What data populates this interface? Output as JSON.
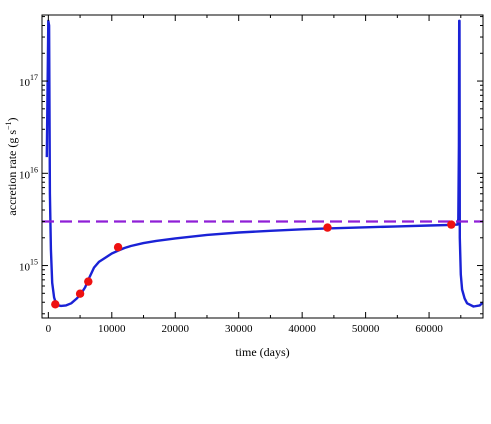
{
  "chart_data": {
    "type": "line",
    "title": "",
    "xlabel": "time (days)",
    "ylabel": "accretion rate (g s",
    "ylabel_sup": "−1",
    "ylabel_close": ")",
    "xlim": [
      -1000,
      68500
    ],
    "ylim": [
      270000000000000.0,
      5.2e+17
    ],
    "yscale": "log",
    "grid": false,
    "x_ticks": [
      0,
      10000,
      20000,
      30000,
      40000,
      50000,
      60000
    ],
    "y_ticks": [
      {
        "value": 1000000000000000.0,
        "base": "10",
        "exp": "15"
      },
      {
        "value": 1e+16,
        "base": "10",
        "exp": "16"
      },
      {
        "value": 1e+17,
        "base": "10",
        "exp": "17"
      }
    ],
    "series": [
      {
        "color": "#1a22d6",
        "style": "solid",
        "x": [
          -250,
          0,
          120,
          250,
          400,
          600,
          900,
          1200,
          1600,
          2000,
          2800,
          3600,
          4500,
          5200,
          5800,
          6300,
          6800,
          7200,
          8000,
          9000,
          10000,
          11000,
          12000,
          13000,
          15000,
          17000,
          20000,
          25000,
          30000,
          35000,
          40000,
          44000,
          50000,
          55000,
          60000,
          63500,
          64500,
          64600,
          64700,
          64750,
          64800,
          64850,
          65000,
          65200,
          65600,
          66000,
          67000,
          68000,
          68500
        ],
        "y": [
          1.5e+16,
          4.5e+17,
          4e+17,
          6000000000000000.0,
          1500000000000000.0,
          650000000000000.0,
          450000000000000.0,
          390000000000000.0,
          370000000000000.0,
          365000000000000.0,
          370000000000000.0,
          390000000000000.0,
          440000000000000.0,
          500000000000000.0,
          580000000000000.0,
          700000000000000.0,
          830000000000000.0,
          950000000000000.0,
          1100000000000000.0,
          1220000000000000.0,
          1350000000000000.0,
          1450000000000000.0,
          1550000000000000.0,
          1630000000000000.0,
          1750000000000000.0,
          1850000000000000.0,
          1970000000000000.0,
          2150000000000000.0,
          2280000000000000.0,
          2380000000000000.0,
          2470000000000000.0,
          2530000000000000.0,
          2600000000000000.0,
          2660000000000000.0,
          2720000000000000.0,
          2760000000000000.0,
          2780000000000000.0,
          3200000000000000.0,
          2e+16,
          4.5e+17,
          4.5e+17,
          2000000000000000.0,
          800000000000000.0,
          550000000000000.0,
          440000000000000.0,
          390000000000000.0,
          360000000000000.0,
          370000000000000.0,
          400000000000000.0
        ]
      },
      {
        "color": "#8f1fd6",
        "style": "dashed",
        "x": [
          -1000,
          68500
        ],
        "y": [
          3000000000000000.0,
          3000000000000000.0
        ]
      }
    ],
    "markers": {
      "color": "#ee1111",
      "x": [
        1100,
        5000,
        6300,
        11000,
        44000,
        63500
      ],
      "y": [
        380000000000000.0,
        495000000000000.0,
        670000000000000.0,
        1580000000000000.0,
        2580000000000000.0,
        2780000000000000.0
      ]
    }
  }
}
